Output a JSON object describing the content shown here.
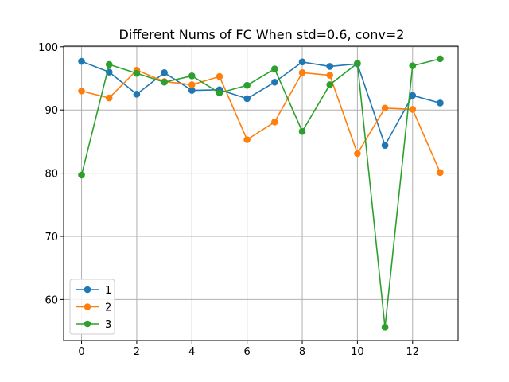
{
  "chart_data": {
    "type": "line",
    "title": "Different Nums of FC When std=0.6, conv=2",
    "xlabel": "",
    "ylabel": "",
    "x": [
      0,
      1,
      2,
      3,
      4,
      5,
      6,
      7,
      8,
      9,
      10,
      11,
      12,
      13
    ],
    "xlim": [
      -0.65,
      13.65
    ],
    "ylim": [
      53.5,
      100.1
    ],
    "xticks": [
      0,
      2,
      4,
      6,
      8,
      10,
      12
    ],
    "yticks": [
      60,
      70,
      80,
      90,
      100
    ],
    "grid": true,
    "legend_position": "lower-left",
    "series": [
      {
        "name": "1",
        "color": "#1f77b4",
        "marker": "circle",
        "values": [
          97.7,
          96.0,
          92.5,
          95.9,
          93.1,
          93.2,
          91.8,
          94.4,
          97.6,
          96.9,
          97.3,
          84.4,
          92.3,
          91.1
        ]
      },
      {
        "name": "2",
        "color": "#ff7f0e",
        "marker": "circle",
        "values": [
          93.0,
          91.9,
          96.3,
          94.5,
          94.0,
          95.3,
          85.3,
          88.1,
          95.9,
          95.5,
          83.1,
          90.3,
          90.1,
          80.1
        ]
      },
      {
        "name": "3",
        "color": "#2ca02c",
        "marker": "circle",
        "values": [
          79.7,
          97.2,
          95.8,
          94.4,
          95.4,
          92.7,
          93.9,
          96.5,
          86.6,
          94.0,
          97.4,
          55.6,
          97.0,
          98.1
        ]
      }
    ]
  }
}
